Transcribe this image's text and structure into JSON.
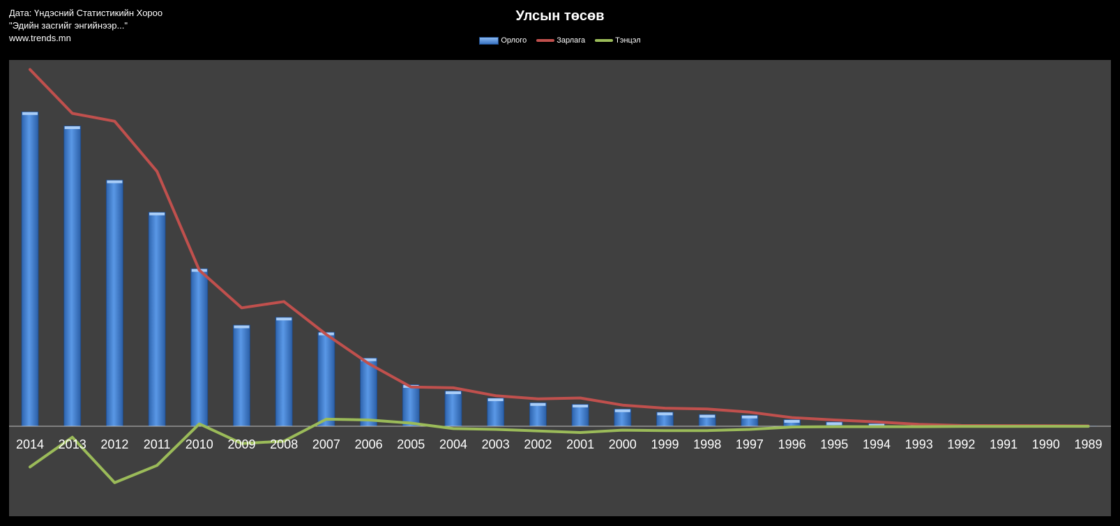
{
  "source": {
    "line1": "Дата: Үндэсний Статистикийн Хороо",
    "line2": "\"Эдийн засгийг энгийнээр...\"",
    "line3": "www.trends.mn"
  },
  "colors": {
    "plot_bg": "#404040",
    "bar": "#3f7fd0",
    "expense": "#c0504d",
    "balance": "#9bbb59"
  },
  "chart_data": {
    "type": "bar",
    "title": "Улсын төсөв",
    "legend_position": "top-center",
    "grid": false,
    "categories": [
      "2014",
      "2013",
      "2012",
      "2011",
      "2010",
      "2009",
      "2008",
      "2007",
      "2006",
      "2005",
      "2004",
      "2003",
      "2002",
      "2001",
      "2000",
      "1999",
      "1998",
      "1997",
      "1996",
      "1995",
      "1994",
      "1993",
      "1992",
      "1991",
      "1990",
      "1989"
    ],
    "ylim": [
      -1400,
      4500
    ],
    "series": [
      {
        "name": "Орлого",
        "type": "bar",
        "values": [
          4010,
          3830,
          3140,
          2730,
          2010,
          1290,
          1390,
          1200,
          870,
          530,
          450,
          360,
          300,
          280,
          220,
          180,
          150,
          140,
          85,
          55,
          35,
          20,
          12,
          8,
          5,
          3
        ]
      },
      {
        "name": "Зарлага",
        "type": "line",
        "values": [
          4550,
          3990,
          3890,
          3250,
          1990,
          1510,
          1590,
          1170,
          800,
          500,
          490,
          390,
          350,
          360,
          270,
          230,
          220,
          180,
          110,
          80,
          55,
          25,
          10,
          8,
          6,
          4
        ]
      },
      {
        "name": "Тэнцэл",
        "type": "line",
        "values": [
          -520,
          -140,
          -720,
          -500,
          30,
          -220,
          -190,
          90,
          80,
          40,
          -30,
          -40,
          -60,
          -80,
          -50,
          -55,
          -55,
          -40,
          -10,
          -5,
          -5,
          -5,
          -3,
          -2,
          -1,
          -1
        ]
      }
    ]
  }
}
